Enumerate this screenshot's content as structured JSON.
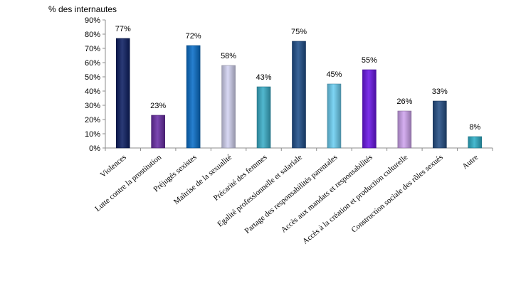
{
  "chart_data": {
    "type": "bar",
    "ylabel": "% des internautes",
    "ylim": [
      0,
      90
    ],
    "yticks": [
      "0%",
      "10%",
      "20%",
      "30%",
      "40%",
      "50%",
      "60%",
      "70%",
      "80%",
      "90%"
    ],
    "categories": [
      "Violences",
      "Lutte contre la prostitution",
      "Préjugés sexistes",
      "Maîtrise de la sexualité",
      "Précarité des femmes",
      "Egalité professionnelle et salariale",
      "Partage des responsabilités parentales",
      "Accès aux mandats et responsabilités",
      "Accès à la création et production culturelle",
      "Construction sociale des rôles sexués",
      "Autre"
    ],
    "values": [
      77,
      23,
      72,
      58,
      43,
      75,
      45,
      55,
      26,
      33,
      8
    ],
    "data_labels": [
      "77%",
      "23%",
      "72%",
      "58%",
      "43%",
      "75%",
      "45%",
      "55%",
      "26%",
      "33%",
      "8%"
    ],
    "colors": [
      "#0d1f63",
      "#6a2ea6",
      "#0a6fc9",
      "#d4d4f2",
      "#3aaec9",
      "#1f4f8a",
      "#6ccff2",
      "#6a16e6",
      "#cfa4ef",
      "#254f85",
      "#2eb0c9"
    ],
    "grid": false,
    "legend": "none"
  }
}
